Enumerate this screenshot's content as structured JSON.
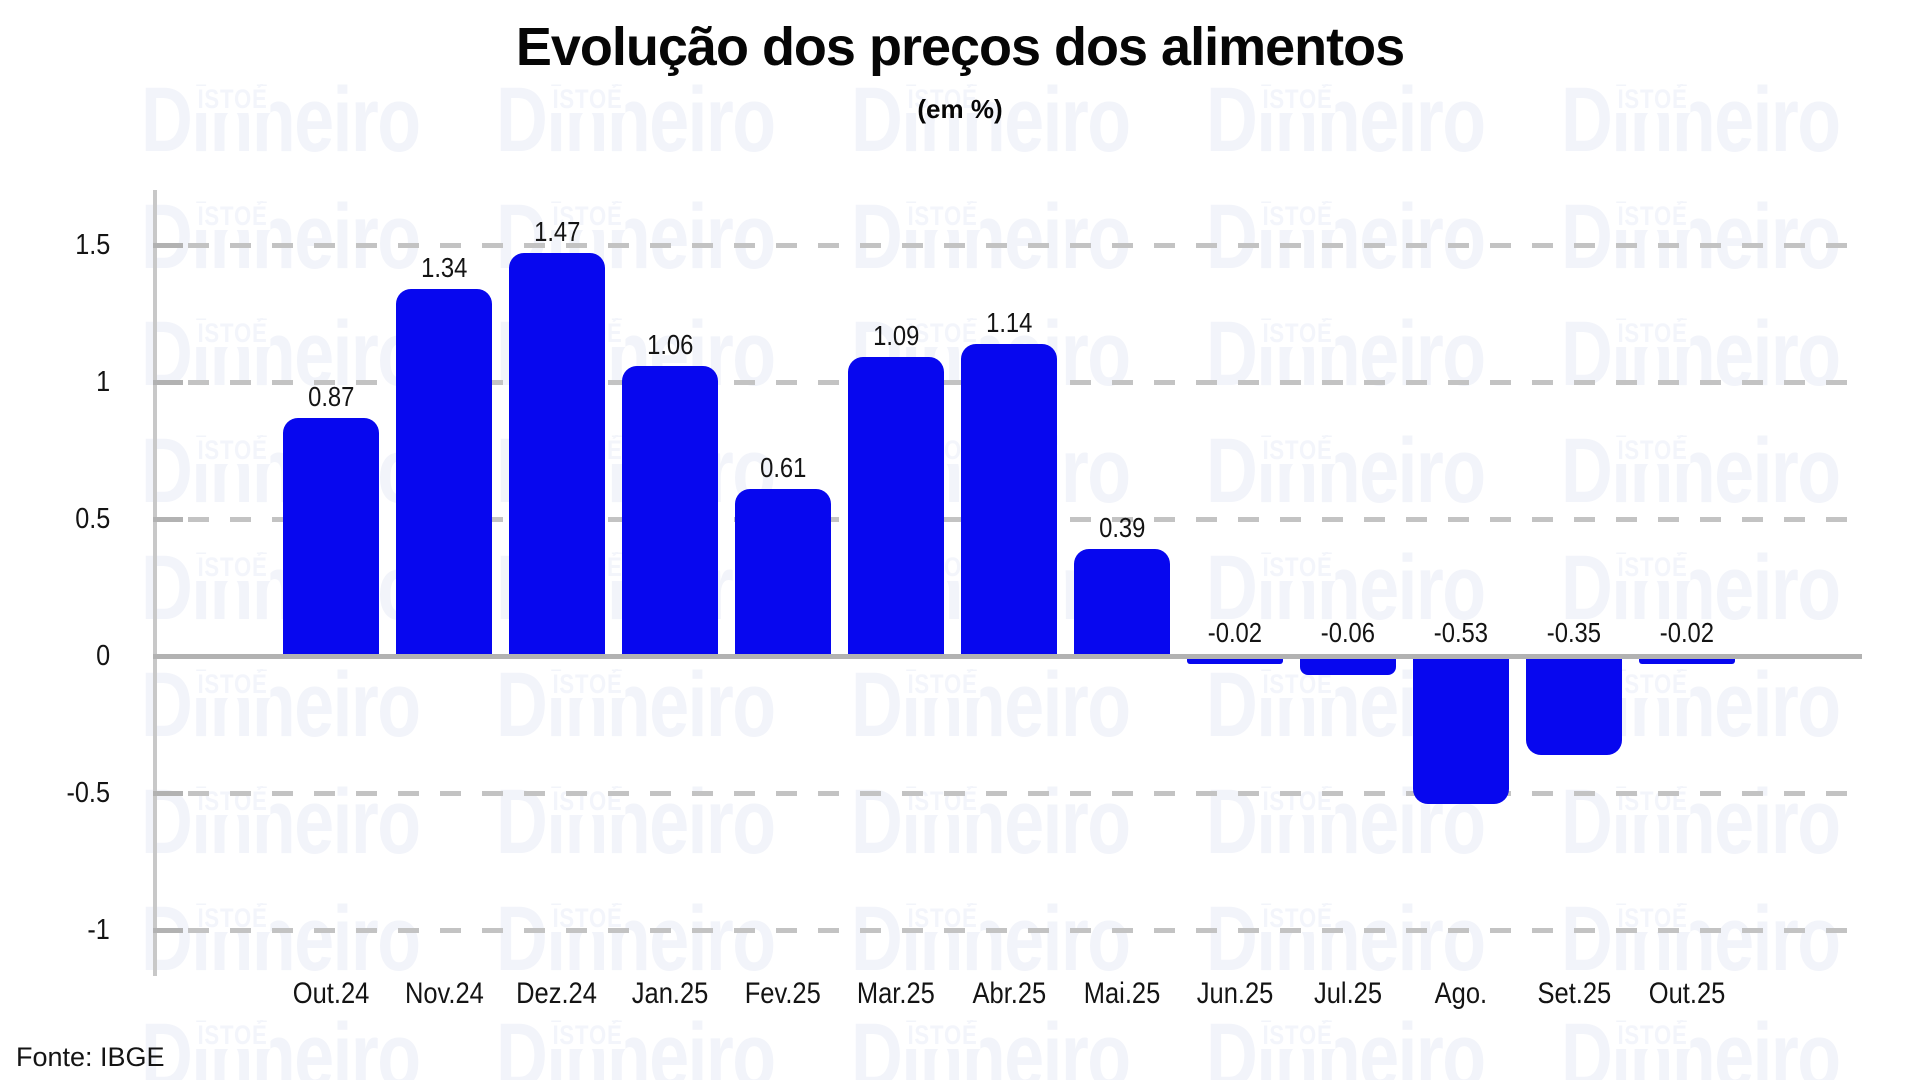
{
  "watermark": {
    "small": "ISTOÉ",
    "large": "Dinheiro",
    "word_color": "#f2f4fa",
    "small_color": "#f3f5fb"
  },
  "colors": {
    "bar": "#0707ef",
    "grid_dash": "#c3c3c3",
    "zero_line": "#b2b2b2",
    "axis": "#c8c8c8",
    "text": "#141414"
  },
  "chart_data": {
    "type": "bar",
    "title": "Evolução dos preços dos alimentos",
    "subtitle": "(em %)",
    "source": "Fonte: IBGE",
    "categories": [
      "Out.24",
      "Nov.24",
      "Dez.24",
      "Jan.25",
      "Fev.25",
      "Mar.25",
      "Abr.25",
      "Mai.25",
      "Jun.25",
      "Jul.25",
      "Ago.",
      "Set.25",
      "Out.25"
    ],
    "values": [
      0.87,
      1.34,
      1.47,
      1.06,
      0.61,
      1.09,
      1.14,
      0.39,
      -0.02,
      -0.06,
      -0.53,
      -0.35,
      -0.02
    ],
    "value_labels": [
      "0.87",
      "1.34",
      "1.47",
      "1.06",
      "0.61",
      "1.09",
      "1.14",
      "0.39",
      "-0.02",
      "-0.06",
      "-0.53",
      "-0.35",
      "-0.02"
    ],
    "yticks": [
      1.5,
      1,
      0.5,
      0,
      -0.5,
      -1
    ],
    "ytick_labels": [
      "1.5",
      "1",
      "0.5",
      "0",
      "-0.5",
      "-1"
    ],
    "ylim": [
      -1.15,
      1.7
    ],
    "grid": "horizontal dashed gridlines, solid zero line",
    "legend": "none",
    "bar_corner": "rounded outer corners"
  }
}
